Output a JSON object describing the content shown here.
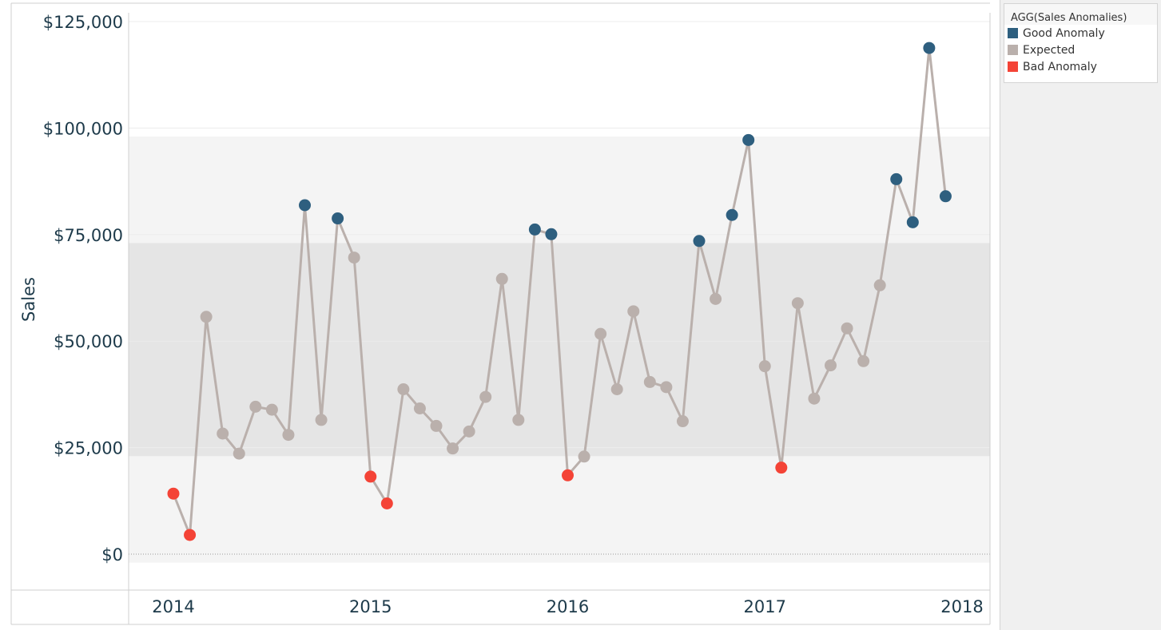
{
  "chart_data": {
    "type": "line",
    "title": "",
    "xlabel": "",
    "ylabel": "Sales",
    "ylim": [
      -8000,
      125000
    ],
    "x_ticks": [
      "2014",
      "2015",
      "2016",
      "2017",
      "2018"
    ],
    "y_ticks": [
      "$0",
      "$25,000",
      "$50,000",
      "$75,000",
      "$100,000",
      "$125,000"
    ],
    "y_tick_values": [
      0,
      25000,
      50000,
      75000,
      100000,
      125000
    ],
    "bands": [
      {
        "from": -2000,
        "to": 98000,
        "color": "#f4f4f4"
      },
      {
        "from": 23000,
        "to": 73000,
        "color": "#e5e5e5"
      }
    ],
    "colors": {
      "Good Anomaly": "#2e5f7f",
      "Expected": "#bab0ac",
      "Bad Anomaly": "#f44336",
      "line": "#bab0ac"
    },
    "series": [
      {
        "x": [
          "2014-01",
          "2014-02",
          "2014-03",
          "2014-04",
          "2014-05",
          "2014-06",
          "2014-07",
          "2014-08",
          "2014-09",
          "2014-10",
          "2014-11",
          "2014-12",
          "2015-01",
          "2015-02",
          "2015-03",
          "2015-04",
          "2015-05",
          "2015-06",
          "2015-07",
          "2015-08",
          "2015-09",
          "2015-10",
          "2015-11",
          "2015-12",
          "2016-01",
          "2016-02",
          "2016-03",
          "2016-04",
          "2016-05",
          "2016-06",
          "2016-07",
          "2016-08",
          "2016-09",
          "2016-10",
          "2016-11",
          "2016-12",
          "2017-01",
          "2017-02",
          "2017-03",
          "2017-04",
          "2017-05",
          "2017-06",
          "2017-07",
          "2017-08",
          "2017-09",
          "2017-10",
          "2017-11",
          "2017-12"
        ],
        "values": [
          14200,
          4500,
          55700,
          28300,
          23600,
          34600,
          33900,
          28000,
          81900,
          31500,
          78800,
          69600,
          18200,
          11900,
          38700,
          34200,
          30100,
          24800,
          28800,
          36900,
          64600,
          31500,
          76200,
          75100,
          18500,
          22900,
          51700,
          38700,
          57000,
          40400,
          39200,
          31200,
          73500,
          59900,
          79600,
          97200,
          44100,
          20300,
          58900,
          36500,
          44300,
          53000,
          45300,
          63100,
          88000,
          77900,
          118800,
          84000
        ],
        "status": [
          "Bad Anomaly",
          "Bad Anomaly",
          "Expected",
          "Expected",
          "Expected",
          "Expected",
          "Expected",
          "Expected",
          "Good Anomaly",
          "Expected",
          "Good Anomaly",
          "Expected",
          "Bad Anomaly",
          "Bad Anomaly",
          "Expected",
          "Expected",
          "Expected",
          "Expected",
          "Expected",
          "Expected",
          "Expected",
          "Expected",
          "Good Anomaly",
          "Good Anomaly",
          "Bad Anomaly",
          "Expected",
          "Expected",
          "Expected",
          "Expected",
          "Expected",
          "Expected",
          "Expected",
          "Good Anomaly",
          "Expected",
          "Good Anomaly",
          "Good Anomaly",
          "Expected",
          "Bad Anomaly",
          "Expected",
          "Expected",
          "Expected",
          "Expected",
          "Expected",
          "Expected",
          "Good Anomaly",
          "Good Anomaly",
          "Good Anomaly",
          "Good Anomaly"
        ]
      }
    ],
    "legend": {
      "title": "AGG(Sales Anomalies)",
      "position": "top-right",
      "items": [
        "Good Anomaly",
        "Expected",
        "Bad Anomaly"
      ]
    }
  }
}
